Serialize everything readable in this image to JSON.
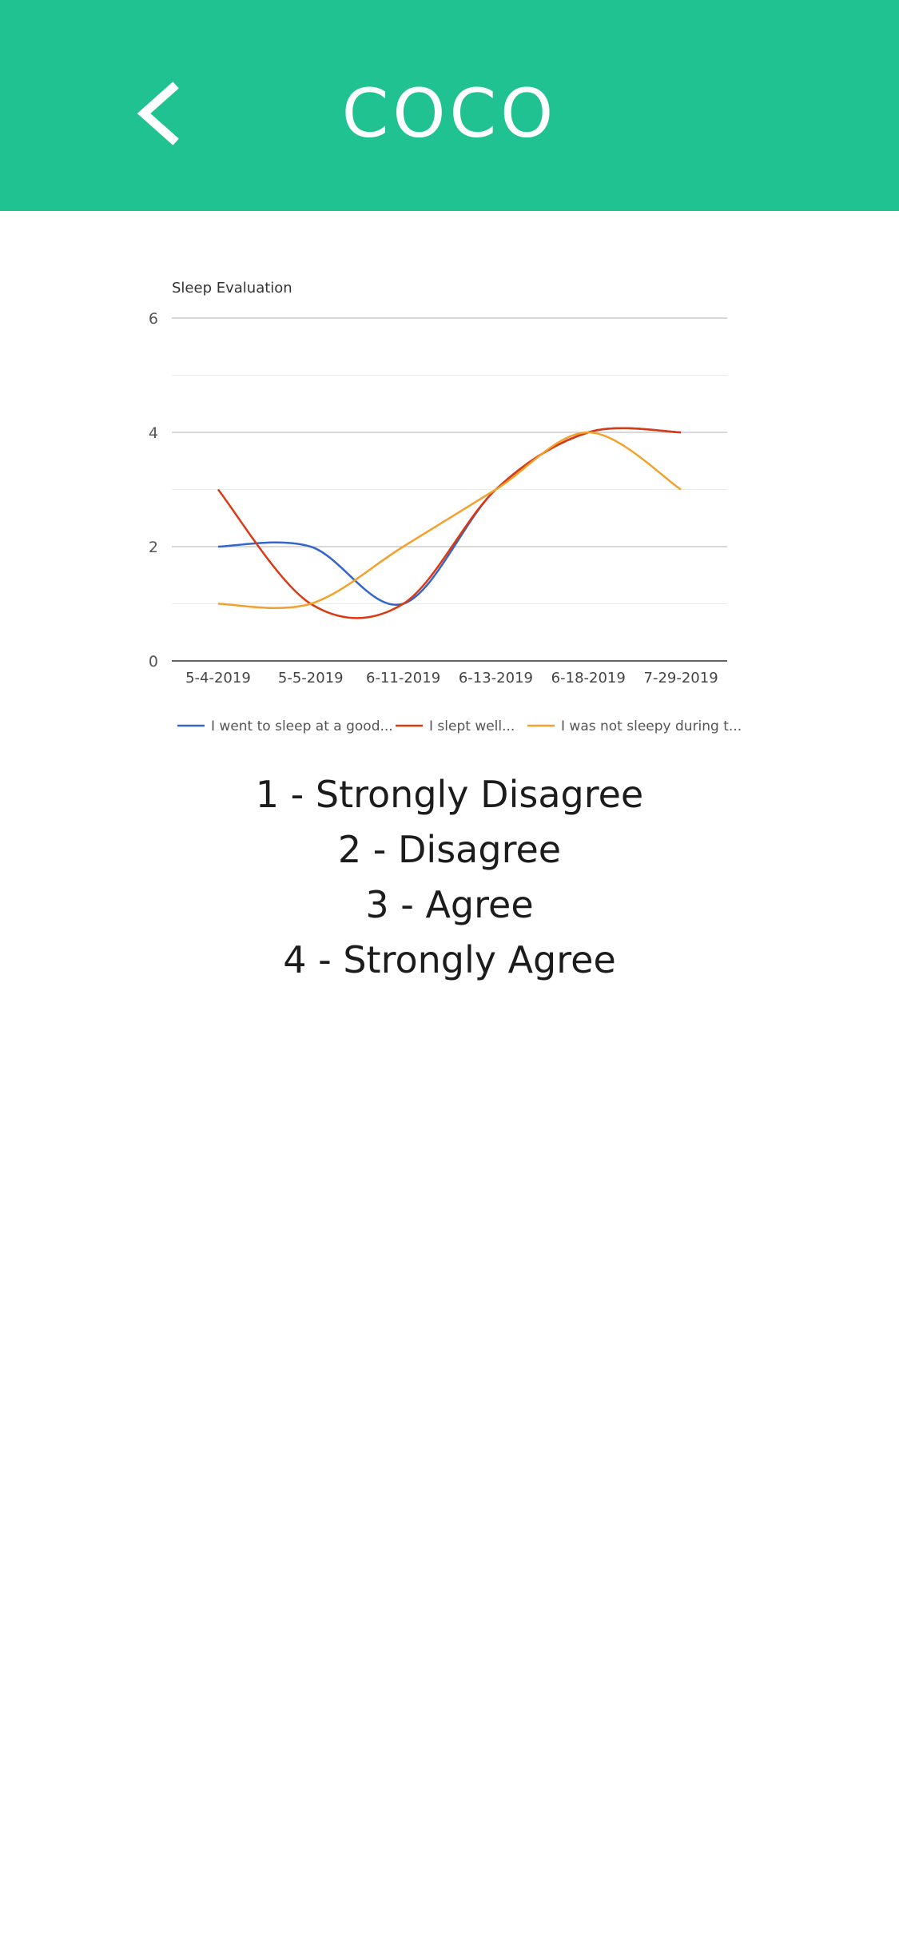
{
  "header": {
    "title": "COCO",
    "back_icon": "chevron-left-icon",
    "background": "#21c292"
  },
  "chart_data": {
    "type": "line",
    "title": "Sleep Evaluation",
    "categories": [
      "5-4-2019",
      "5-5-2019",
      "6-11-2019",
      "6-13-2019",
      "6-18-2019",
      "7-29-2019"
    ],
    "ylim": [
      0,
      6
    ],
    "yticks": [
      0,
      2,
      4,
      6
    ],
    "grid": true,
    "legend": "bottom",
    "series": [
      {
        "name": "I went to sleep at a good...",
        "color": "#3366cc",
        "values": [
          2,
          2,
          1,
          3,
          4,
          4
        ]
      },
      {
        "name": "I slept well...",
        "color": "#dc3912",
        "values": [
          3,
          1,
          1,
          3,
          4,
          4
        ]
      },
      {
        "name": "I was not sleepy during t...",
        "color": "#f4a12c",
        "values": [
          1,
          1,
          2,
          3,
          4,
          3
        ]
      }
    ]
  },
  "scale": {
    "items": [
      "1 - Strongly Disagree",
      "2 - Disagree",
      "3 - Agree",
      "4 - Strongly Agree"
    ]
  }
}
